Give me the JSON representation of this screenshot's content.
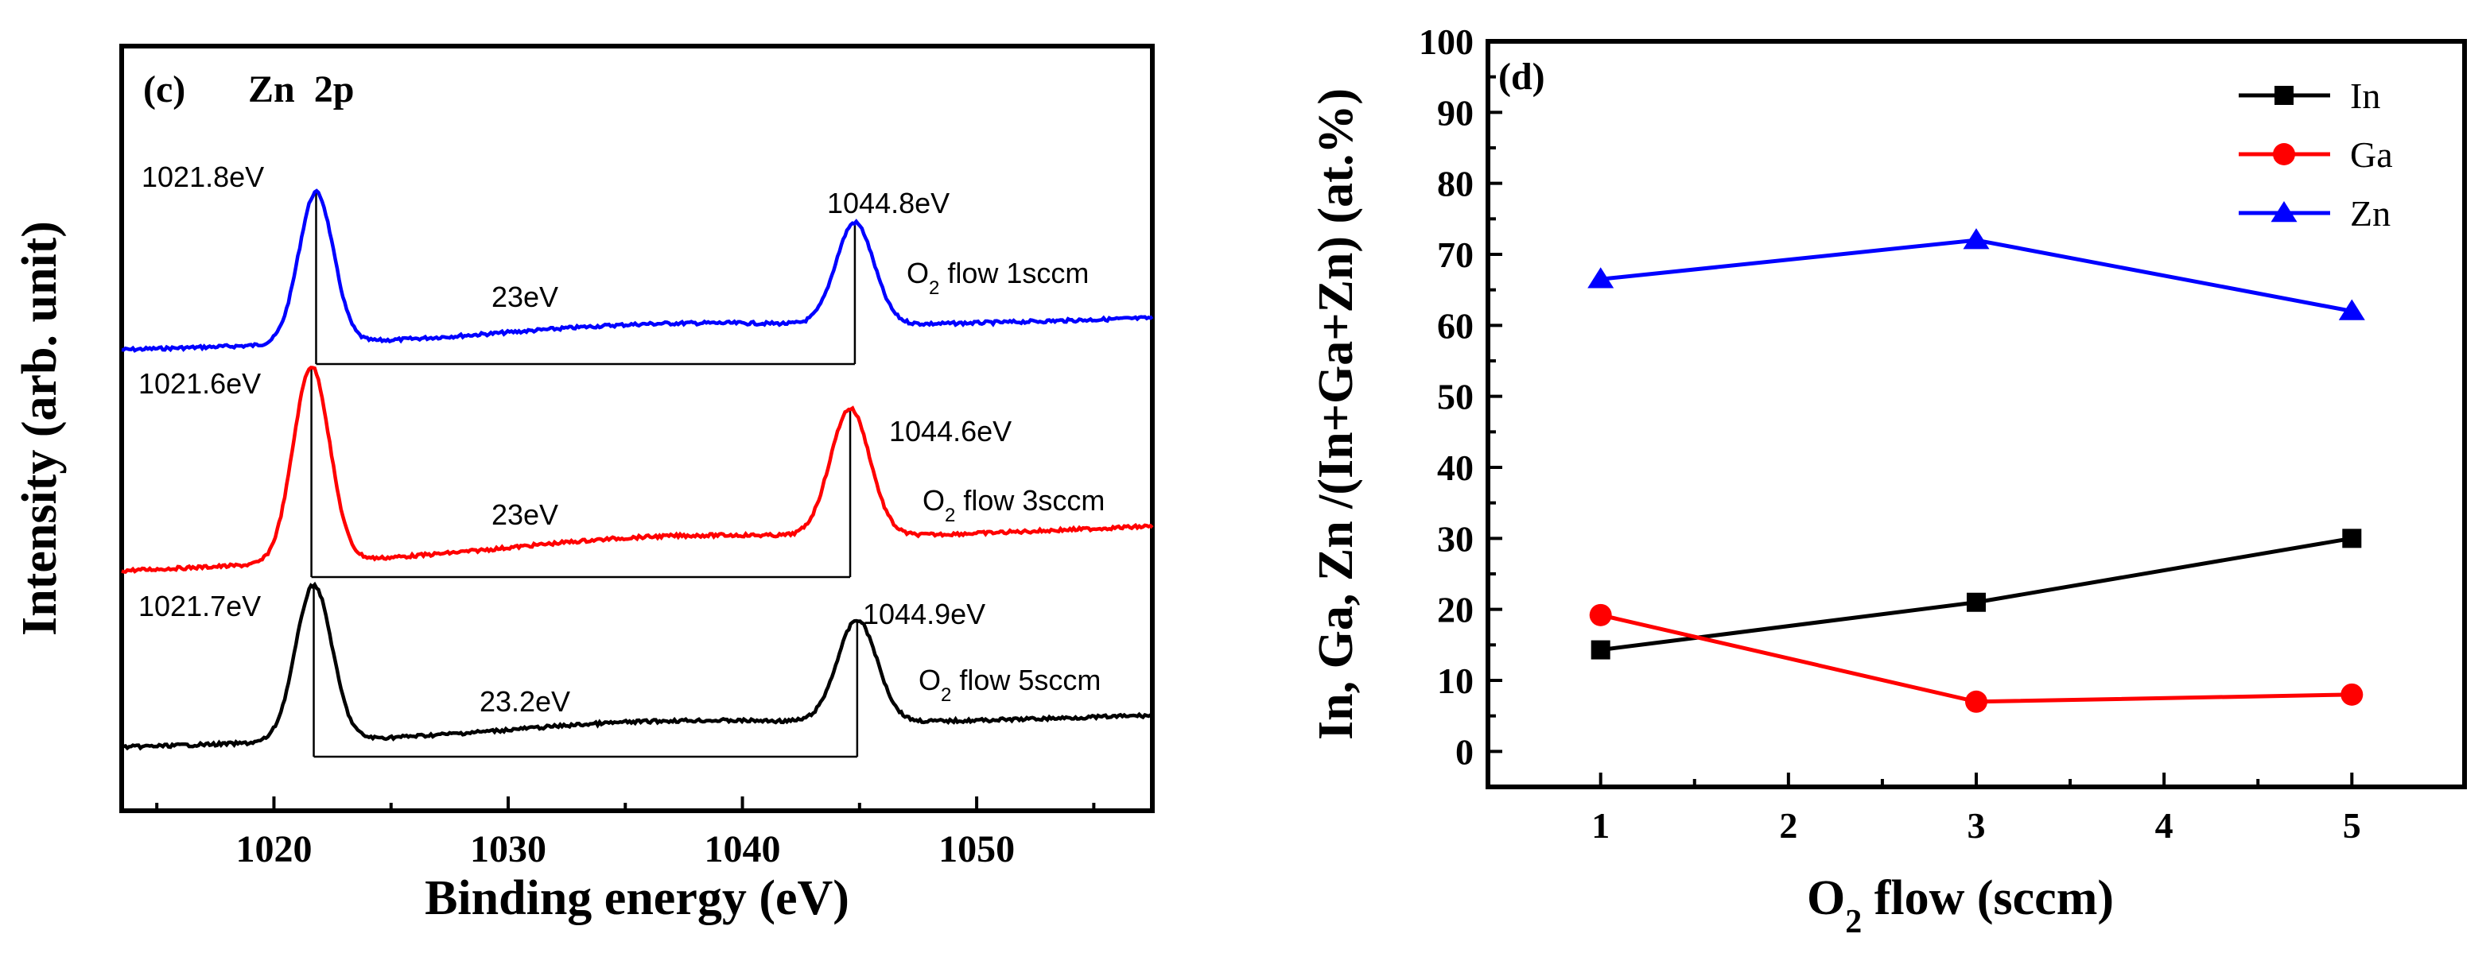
{
  "chart_data": [
    {
      "type": "line",
      "panel_label": "(c)",
      "title": "Zn  2p",
      "xlabel": "Binding energy (eV)",
      "ylabel": "Intensity (arb. unit)",
      "xlim": [
        1013.5,
        1057.5
      ],
      "xticks": [
        1020,
        1030,
        1040,
        1050
      ],
      "yticks_shown": false,
      "series": [
        {
          "name": "O2 flow 1sccm",
          "label_main": "O",
          "label_sub": "2",
          "label_rest": " flow 1sccm",
          "color": "#0000ff",
          "peaks": [
            1021.8,
            1044.8
          ],
          "peak_labels": [
            "1021.8eV",
            "1044.8eV"
          ],
          "separation_label": "23eV"
        },
        {
          "name": "O2 flow 3sccm",
          "label_main": "O",
          "label_sub": "2",
          "label_rest": " flow 3sccm",
          "color": "#ff0000",
          "peaks": [
            1021.6,
            1044.6
          ],
          "peak_labels": [
            "1021.6eV",
            "1044.6eV"
          ],
          "separation_label": "23eV"
        },
        {
          "name": "O2 flow 5sccm",
          "label_main": "O",
          "label_sub": "2",
          "label_rest": " flow 5sccm",
          "color": "#000000",
          "peaks": [
            1021.7,
            1044.9
          ],
          "peak_labels": [
            "1021.7eV",
            "1044.9eV"
          ],
          "separation_label": "23.2eV"
        }
      ]
    },
    {
      "type": "line",
      "panel_label": "(d)",
      "xlabel_main": "O",
      "xlabel_sub": "2",
      "xlabel_rest": " flow (sccm)",
      "ylabel": "In, Ga, Zn /(In+Ga+Zn) (at.%)",
      "x": [
        1,
        3,
        5
      ],
      "xlim": [
        0.4,
        5.6
      ],
      "ylim": [
        -5,
        100
      ],
      "xticks": [
        1,
        2,
        3,
        4,
        5
      ],
      "yticks": [
        0,
        10,
        20,
        30,
        40,
        50,
        60,
        70,
        80,
        90,
        100
      ],
      "legend_position": "top-right",
      "series": [
        {
          "name": "In",
          "color": "#000000",
          "marker": "square",
          "values": [
            14.3,
            21,
            30
          ]
        },
        {
          "name": "Ga",
          "color": "#ff0000",
          "marker": "circle",
          "values": [
            19.2,
            7,
            8
          ]
        },
        {
          "name": "Zn",
          "color": "#0000ff",
          "marker": "triangle",
          "values": [
            66.5,
            72,
            62
          ]
        }
      ]
    }
  ]
}
